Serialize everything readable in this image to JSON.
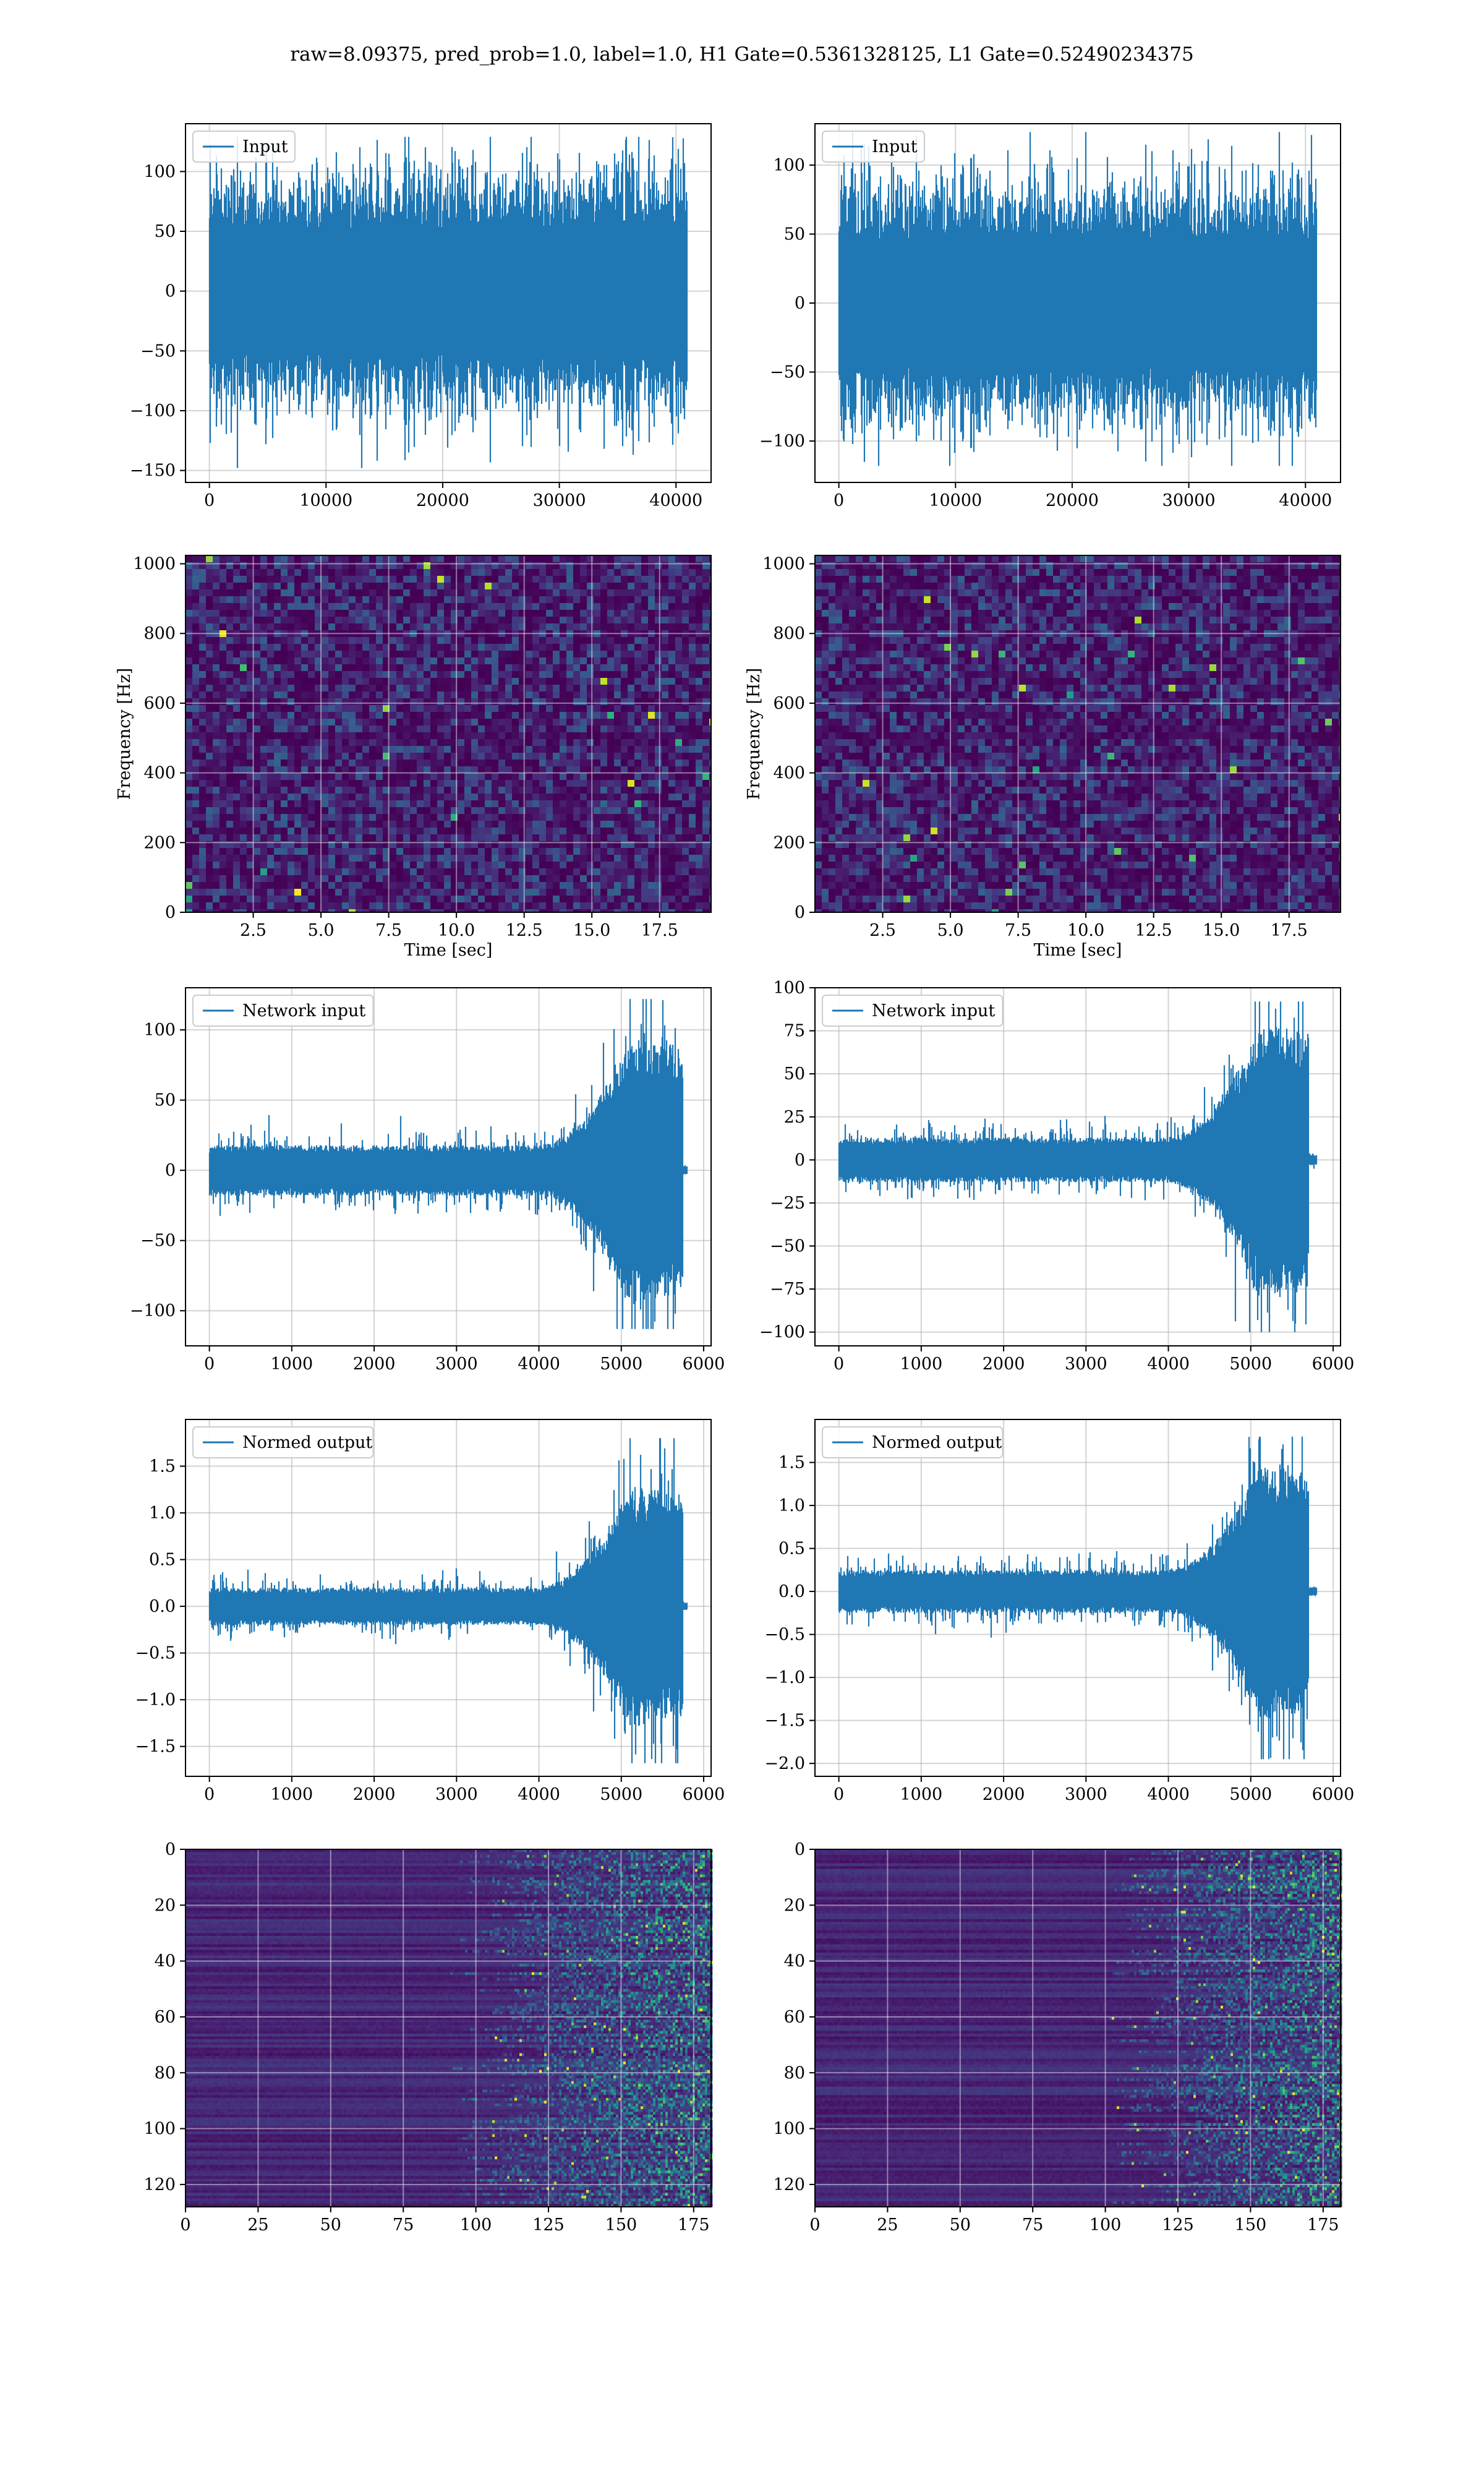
{
  "figure": {
    "title": "raw=8.09375, pred_prob=1.0, label=1.0, H1 Gate=0.5361328125, L1 Gate=0.52490234375"
  },
  "colors": {
    "series": "#1f77b4",
    "grid": "#b0b0b0",
    "frame": "#000000"
  },
  "chart_data": [
    {
      "id": "h1-input",
      "type": "line",
      "detector_column": "left",
      "series": [
        {
          "name": "Input"
        }
      ],
      "signal": {
        "n": 40960,
        "kind": "noise",
        "mean": 0,
        "band": [
          -80,
          80
        ],
        "extremes": [
          -148,
          129
        ]
      },
      "xlim": [
        -2048,
        43008
      ],
      "ylim": [
        -160,
        140
      ],
      "xticks": [
        0,
        10000,
        20000,
        30000,
        40000
      ],
      "xtick_labels": [
        "0",
        "10000",
        "20000",
        "30000",
        "40000"
      ],
      "yticks": [
        100,
        50,
        0,
        -50,
        -100,
        -150
      ],
      "ytick_labels": [
        "100",
        "50",
        "0",
        "−50",
        "−100",
        "−150"
      ],
      "xlabel": "",
      "ylabel": "",
      "grid": true,
      "legend": "upper left"
    },
    {
      "id": "l1-input",
      "type": "line",
      "detector_column": "right",
      "series": [
        {
          "name": "Input"
        }
      ],
      "signal": {
        "n": 40960,
        "kind": "noise",
        "mean": 0,
        "band": [
          -70,
          70
        ],
        "extremes": [
          -118,
          124
        ]
      },
      "xlim": [
        -2048,
        43008
      ],
      "ylim": [
        -130,
        130
      ],
      "xticks": [
        0,
        10000,
        20000,
        30000,
        40000
      ],
      "xtick_labels": [
        "0",
        "10000",
        "20000",
        "30000",
        "40000"
      ],
      "yticks": [
        100,
        50,
        0,
        -50,
        -100
      ],
      "ytick_labels": [
        "100",
        "50",
        "0",
        "−50",
        "−100"
      ],
      "xlabel": "",
      "ylabel": "",
      "grid": true,
      "legend": "upper left"
    },
    {
      "id": "h1-spectrogram",
      "type": "heatmap",
      "detector_column": "left",
      "xlim": [
        0,
        19.4
      ],
      "ylim": [
        0,
        1024
      ],
      "colormap": "viridis",
      "xticks": [
        2.5,
        5.0,
        7.5,
        10.0,
        12.5,
        15.0,
        17.5
      ],
      "xtick_labels": [
        "2.5",
        "5.0",
        "7.5",
        "10.0",
        "12.5",
        "15.0",
        "17.5"
      ],
      "yticks": [
        0,
        200,
        400,
        600,
        800,
        1000
      ],
      "ytick_labels": [
        "0",
        "200",
        "400",
        "600",
        "800",
        "1000"
      ],
      "xlabel": "Time [sec]",
      "ylabel": "Frequency [Hz]",
      "grid": true
    },
    {
      "id": "l1-spectrogram",
      "type": "heatmap",
      "detector_column": "right",
      "xlim": [
        0,
        19.4
      ],
      "ylim": [
        0,
        1024
      ],
      "colormap": "viridis",
      "xticks": [
        2.5,
        5.0,
        7.5,
        10.0,
        12.5,
        15.0,
        17.5
      ],
      "xtick_labels": [
        "2.5",
        "5.0",
        "7.5",
        "10.0",
        "12.5",
        "15.0",
        "17.5"
      ],
      "yticks": [
        0,
        200,
        400,
        600,
        800,
        1000
      ],
      "ytick_labels": [
        "0",
        "200",
        "400",
        "600",
        "800",
        "1000"
      ],
      "xlabel": "Time [sec]",
      "ylabel": "Frequency [Hz]",
      "grid": true
    },
    {
      "id": "h1-network-input",
      "type": "line",
      "detector_column": "left",
      "series": [
        {
          "name": "Network input"
        }
      ],
      "signal": {
        "n": 5800,
        "kind": "chirp",
        "base_amp": 18,
        "peak_amp": 95,
        "rise_start": 3900,
        "peak_at": 5100,
        "cutoff": 5750,
        "tail_amp": 3,
        "extremes": [
          -113,
          122
        ]
      },
      "xlim": [
        -290,
        6090
      ],
      "ylim": [
        -125,
        130
      ],
      "xticks": [
        0,
        1000,
        2000,
        3000,
        4000,
        5000,
        6000
      ],
      "xtick_labels": [
        "0",
        "1000",
        "2000",
        "3000",
        "4000",
        "5000",
        "6000"
      ],
      "yticks": [
        100,
        50,
        0,
        -50,
        -100
      ],
      "ytick_labels": [
        "100",
        "50",
        "0",
        "−50",
        "−100"
      ],
      "xlabel": "",
      "ylabel": "",
      "grid": true,
      "legend": "upper left"
    },
    {
      "id": "l1-network-input",
      "type": "line",
      "detector_column": "right",
      "series": [
        {
          "name": "Network input"
        }
      ],
      "signal": {
        "n": 5800,
        "kind": "chirp",
        "base_amp": 13,
        "peak_amp": 80,
        "rise_start": 3900,
        "peak_at": 5100,
        "cutoff": 5700,
        "tail_amp": 3,
        "extremes": [
          -100,
          92
        ]
      },
      "xlim": [
        -290,
        6090
      ],
      "ylim": [
        -108,
        100
      ],
      "xticks": [
        0,
        1000,
        2000,
        3000,
        4000,
        5000,
        6000
      ],
      "xtick_labels": [
        "0",
        "1000",
        "2000",
        "3000",
        "4000",
        "5000",
        "6000"
      ],
      "yticks": [
        100,
        75,
        50,
        25,
        0,
        -25,
        -50,
        -75,
        -100
      ],
      "ytick_labels": [
        "100",
        "75",
        "50",
        "25",
        "0",
        "−25",
        "−50",
        "−75",
        "−100"
      ],
      "xlabel": "",
      "ylabel": "",
      "grid": true,
      "legend": "upper left"
    },
    {
      "id": "h1-normed-output",
      "type": "line",
      "detector_column": "left",
      "series": [
        {
          "name": "Normed output"
        }
      ],
      "signal": {
        "n": 5800,
        "kind": "chirp",
        "base_amp": 0.2,
        "peak_amp": 1.3,
        "rise_start": 3900,
        "peak_at": 5100,
        "cutoff": 5750,
        "tail_amp": 0.04,
        "extremes": [
          -1.68,
          1.8
        ]
      },
      "xlim": [
        -290,
        6090
      ],
      "ylim": [
        -1.82,
        2.0
      ],
      "xticks": [
        0,
        1000,
        2000,
        3000,
        4000,
        5000,
        6000
      ],
      "xtick_labels": [
        "0",
        "1000",
        "2000",
        "3000",
        "4000",
        "5000",
        "6000"
      ],
      "yticks": [
        1.5,
        1.0,
        0.5,
        0.0,
        -0.5,
        -1.0,
        -1.5
      ],
      "ytick_labels": [
        "1.5",
        "1.0",
        "0.5",
        "0.0",
        "−0.5",
        "−1.0",
        "−1.5"
      ],
      "xlabel": "",
      "ylabel": "",
      "grid": true,
      "legend": "upper left"
    },
    {
      "id": "l1-normed-output",
      "type": "line",
      "detector_column": "right",
      "series": [
        {
          "name": "Normed output"
        }
      ],
      "signal": {
        "n": 5800,
        "kind": "chirp",
        "base_amp": 0.25,
        "peak_amp": 1.5,
        "rise_start": 3900,
        "peak_at": 5100,
        "cutoff": 5700,
        "tail_amp": 0.05,
        "extremes": [
          -1.95,
          1.8
        ]
      },
      "xlim": [
        -290,
        6090
      ],
      "ylim": [
        -2.15,
        2.0
      ],
      "xticks": [
        0,
        1000,
        2000,
        3000,
        4000,
        5000,
        6000
      ],
      "xtick_labels": [
        "0",
        "1000",
        "2000",
        "3000",
        "4000",
        "5000",
        "6000"
      ],
      "yticks": [
        1.5,
        1.0,
        0.5,
        0.0,
        -0.5,
        -1.0,
        -1.5,
        -2.0
      ],
      "ytick_labels": [
        "1.5",
        "1.0",
        "0.5",
        "0.0",
        "−0.5",
        "−1.0",
        "−1.5",
        "−2.0"
      ],
      "xlabel": "",
      "ylabel": "",
      "grid": true,
      "legend": "upper left"
    },
    {
      "id": "h1-feature-map",
      "type": "heatmap",
      "detector_column": "left",
      "xlim": [
        0,
        181
      ],
      "ylim": [
        128,
        0
      ],
      "colormap": "viridis",
      "activity_onset": 110,
      "xticks": [
        0,
        25,
        50,
        75,
        100,
        125,
        150,
        175
      ],
      "xtick_labels": [
        "0",
        "25",
        "50",
        "75",
        "100",
        "125",
        "150",
        "175"
      ],
      "yticks": [
        0,
        20,
        40,
        60,
        80,
        100,
        120
      ],
      "ytick_labels": [
        "0",
        "20",
        "40",
        "60",
        "80",
        "100",
        "120"
      ],
      "xlabel": "",
      "ylabel": "",
      "grid": true
    },
    {
      "id": "l1-feature-map",
      "type": "heatmap",
      "detector_column": "right",
      "xlim": [
        0,
        181
      ],
      "ylim": [
        128,
        0
      ],
      "colormap": "viridis",
      "activity_onset": 120,
      "xticks": [
        0,
        25,
        50,
        75,
        100,
        125,
        150,
        175
      ],
      "xtick_labels": [
        "0",
        "25",
        "50",
        "75",
        "100",
        "125",
        "150",
        "175"
      ],
      "yticks": [
        0,
        20,
        40,
        60,
        80,
        100,
        120
      ],
      "ytick_labels": [
        "0",
        "20",
        "40",
        "60",
        "80",
        "100",
        "120"
      ],
      "xlabel": "",
      "ylabel": "",
      "grid": true
    }
  ]
}
